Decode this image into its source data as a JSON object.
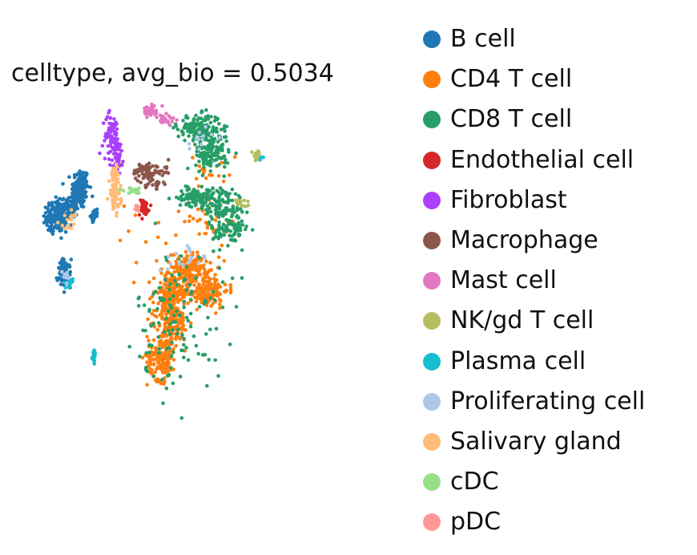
{
  "chart_data": {
    "type": "scatter",
    "title": "celltype, avg_bio = 0.5034",
    "xlabel": "",
    "ylabel": "",
    "axes_visible": false,
    "grid": false,
    "legend_placement": "right",
    "x_range": [
      0,
      100
    ],
    "y_range": [
      0,
      100
    ],
    "series": [
      {
        "name": "B cell",
        "color": "#1f77b4",
        "clusters": [
          {
            "x": 13.4,
            "y": 75.5,
            "sx": 1.2,
            "sy": 3.0,
            "n": 140
          },
          {
            "x": 10.9,
            "y": 70.5,
            "sx": 1.0,
            "sy": 1.8,
            "n": 90
          },
          {
            "x": 6.8,
            "y": 67.5,
            "sx": 1.4,
            "sy": 2.2,
            "n": 180
          },
          {
            "x": 17.3,
            "y": 67.8,
            "sx": 0.5,
            "sy": 0.8,
            "n": 30
          },
          {
            "x": 8.9,
            "y": 51.0,
            "sx": 0.9,
            "sy": 2.0,
            "n": 80
          }
        ]
      },
      {
        "name": "CD4 T cell",
        "color": "#ff7f0e",
        "clusters": [
          {
            "x": 44.0,
            "y": 53.0,
            "sx": 2.6,
            "sy": 2.0,
            "n": 130
          },
          {
            "x": 38.5,
            "y": 45.0,
            "sx": 2.5,
            "sy": 3.0,
            "n": 150
          },
          {
            "x": 48.0,
            "y": 46.0,
            "sx": 3.2,
            "sy": 2.5,
            "n": 160
          },
          {
            "x": 39.0,
            "y": 37.0,
            "sx": 2.2,
            "sy": 2.8,
            "n": 140
          },
          {
            "x": 36.0,
            "y": 27.0,
            "sx": 2.0,
            "sy": 3.5,
            "n": 160
          },
          {
            "x": 50.0,
            "y": 66.0,
            "sx": 4.0,
            "sy": 3.0,
            "n": 35
          },
          {
            "x": 49.5,
            "y": 80.0,
            "sx": 3.5,
            "sy": 3.5,
            "n": 25
          },
          {
            "x": 29.0,
            "y": 60.0,
            "sx": 6.0,
            "sy": 8.0,
            "n": 12
          }
        ]
      },
      {
        "name": "CD8 T cell",
        "color": "#279e68",
        "clusters": [
          {
            "x": 46.5,
            "y": 93.0,
            "sx": 3.0,
            "sy": 2.0,
            "n": 170
          },
          {
            "x": 50.0,
            "y": 86.0,
            "sx": 2.3,
            "sy": 2.5,
            "n": 130
          },
          {
            "x": 45.5,
            "y": 73.0,
            "sx": 2.5,
            "sy": 1.3,
            "n": 100
          },
          {
            "x": 53.0,
            "y": 70.5,
            "sx": 3.0,
            "sy": 3.0,
            "n": 110
          },
          {
            "x": 55.0,
            "y": 63.0,
            "sx": 2.5,
            "sy": 2.0,
            "n": 70
          },
          {
            "x": 41.0,
            "y": 38.0,
            "sx": 6.0,
            "sy": 10.0,
            "n": 130
          }
        ]
      },
      {
        "name": "Endothelial cell",
        "color": "#d62728",
        "clusters": [
          {
            "x": 31.0,
            "y": 70.0,
            "sx": 0.7,
            "sy": 1.2,
            "n": 45
          }
        ]
      },
      {
        "name": "Fibroblast",
        "color": "#aa40fc",
        "clusters": [
          {
            "x": 22.0,
            "y": 91.0,
            "sx": 1.2,
            "sy": 3.0,
            "n": 70
          },
          {
            "x": 24.0,
            "y": 86.5,
            "sx": 0.8,
            "sy": 1.6,
            "n": 25
          },
          {
            "x": 23.5,
            "y": 83.0,
            "sx": 0.8,
            "sy": 1.5,
            "n": 30
          }
        ]
      },
      {
        "name": "Macrophage",
        "color": "#8c564b",
        "clusters": [
          {
            "x": 31.5,
            "y": 80.5,
            "sx": 1.8,
            "sy": 1.3,
            "n": 70
          },
          {
            "x": 36.5,
            "y": 81.0,
            "sx": 1.0,
            "sy": 1.0,
            "n": 12
          },
          {
            "x": 34.0,
            "y": 77.0,
            "sx": 1.2,
            "sy": 0.7,
            "n": 20
          }
        ]
      },
      {
        "name": "Mast cell",
        "color": "#e377c2",
        "clusters": [
          {
            "x": 32.5,
            "y": 98.0,
            "sx": 1.0,
            "sy": 0.7,
            "n": 40
          },
          {
            "x": 36.5,
            "y": 95.5,
            "sx": 1.6,
            "sy": 1.0,
            "n": 30
          }
        ]
      },
      {
        "name": "NK/gd T cell",
        "color": "#b5bd61",
        "clusters": [
          {
            "x": 62.5,
            "y": 85.0,
            "sx": 0.7,
            "sy": 0.7,
            "n": 30
          },
          {
            "x": 58.0,
            "y": 71.5,
            "sx": 0.8,
            "sy": 0.6,
            "n": 18
          }
        ]
      },
      {
        "name": "Plasma cell",
        "color": "#17becf",
        "clusters": [
          {
            "x": 17.2,
            "y": 27.0,
            "sx": 0.25,
            "sy": 0.9,
            "n": 25
          },
          {
            "x": 10.5,
            "y": 48.0,
            "sx": 0.4,
            "sy": 0.7,
            "n": 15
          },
          {
            "x": 63.5,
            "y": 84.5,
            "sx": 0.3,
            "sy": 0.3,
            "n": 3
          }
        ]
      },
      {
        "name": "Proliferating cell",
        "color": "#aec7e8",
        "clusters": [
          {
            "x": 46.0,
            "y": 90.0,
            "sx": 2.0,
            "sy": 2.0,
            "n": 12
          },
          {
            "x": 41.0,
            "y": 55.0,
            "sx": 4.0,
            "sy": 2.0,
            "n": 18
          },
          {
            "x": 9.5,
            "y": 50.5,
            "sx": 1.0,
            "sy": 1.0,
            "n": 8
          }
        ]
      },
      {
        "name": "Salivary gland",
        "color": "#ffbb78",
        "clusters": [
          {
            "x": 23.0,
            "y": 80.0,
            "sx": 0.6,
            "sy": 1.2,
            "n": 30
          },
          {
            "x": 23.0,
            "y": 73.5,
            "sx": 0.8,
            "sy": 2.4,
            "n": 60
          },
          {
            "x": 10.5,
            "y": 67.0,
            "sx": 1.5,
            "sy": 1.5,
            "n": 15
          }
        ]
      },
      {
        "name": "cDC",
        "color": "#98df8a",
        "clusters": [
          {
            "x": 28.5,
            "y": 75.0,
            "sx": 1.5,
            "sy": 0.4,
            "n": 25
          }
        ]
      },
      {
        "name": "pDC",
        "color": "#ff9896",
        "clusters": [
          {
            "x": 29.0,
            "y": 70.0,
            "sx": 0.4,
            "sy": 0.7,
            "n": 12
          }
        ]
      }
    ]
  }
}
